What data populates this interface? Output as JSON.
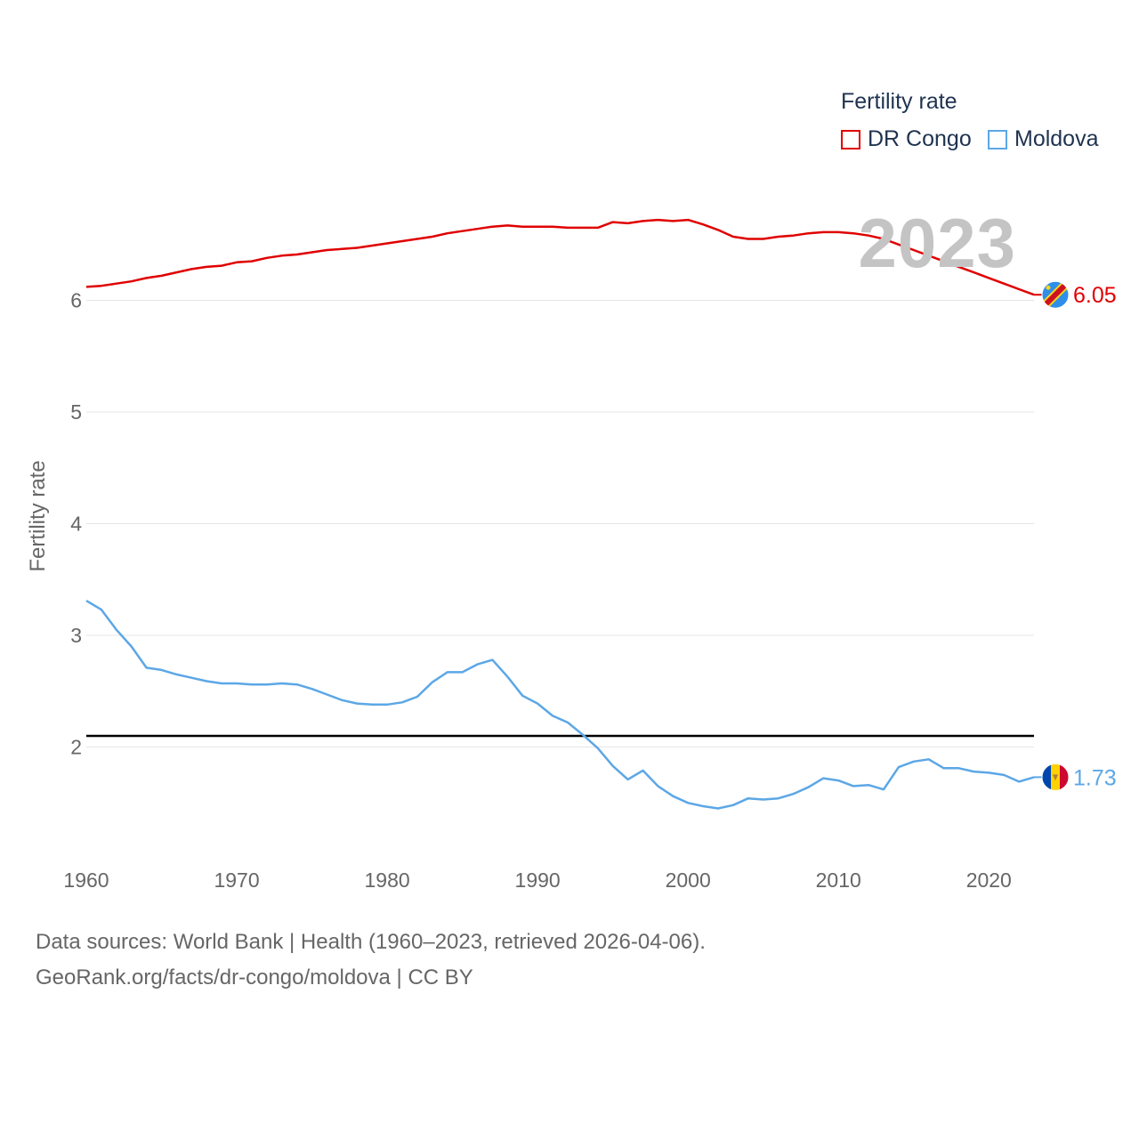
{
  "legend": {
    "title": "Fertility rate",
    "items": [
      {
        "label": "DR Congo",
        "color": "#e00000"
      },
      {
        "label": "Moldova",
        "color": "#5ca7e6"
      }
    ]
  },
  "year_watermark": "2023",
  "footer": {
    "line1": "Data sources: World Bank | Health (1960–2023, retrieved 2026-04-06).",
    "line2": "GeoRank.org/facts/dr-congo/moldova | CC BY"
  },
  "chart_data": {
    "type": "line",
    "title": "Fertility rate",
    "xlabel": "",
    "ylabel": "Fertility rate",
    "xlim": [
      1960,
      2023
    ],
    "ylim": [
      1.0,
      7.0
    ],
    "x_ticks": [
      1960,
      1970,
      1980,
      1990,
      2000,
      2010,
      2020
    ],
    "y_ticks": [
      2,
      3,
      4,
      5,
      6
    ],
    "reference_line": {
      "value": 2.1,
      "color": "#000000"
    },
    "x": [
      1960,
      1961,
      1962,
      1963,
      1964,
      1965,
      1966,
      1967,
      1968,
      1969,
      1970,
      1971,
      1972,
      1973,
      1974,
      1975,
      1976,
      1977,
      1978,
      1979,
      1980,
      1981,
      1982,
      1983,
      1984,
      1985,
      1986,
      1987,
      1988,
      1989,
      1990,
      1991,
      1992,
      1993,
      1994,
      1995,
      1996,
      1997,
      1998,
      1999,
      2000,
      2001,
      2002,
      2003,
      2004,
      2005,
      2006,
      2007,
      2008,
      2009,
      2010,
      2011,
      2012,
      2013,
      2014,
      2015,
      2016,
      2017,
      2018,
      2019,
      2020,
      2021,
      2022,
      2023
    ],
    "series": [
      {
        "name": "DR Congo",
        "color": "#e00000",
        "end_label": "6.05",
        "values": [
          6.12,
          6.13,
          6.15,
          6.17,
          6.2,
          6.22,
          6.25,
          6.28,
          6.3,
          6.31,
          6.34,
          6.35,
          6.38,
          6.4,
          6.41,
          6.43,
          6.45,
          6.46,
          6.47,
          6.49,
          6.51,
          6.53,
          6.55,
          6.57,
          6.6,
          6.62,
          6.64,
          6.66,
          6.67,
          6.66,
          6.66,
          6.66,
          6.65,
          6.65,
          6.65,
          6.7,
          6.69,
          6.71,
          6.72,
          6.71,
          6.72,
          6.68,
          6.63,
          6.57,
          6.55,
          6.55,
          6.57,
          6.58,
          6.6,
          6.61,
          6.61,
          6.6,
          6.58,
          6.55,
          6.5,
          6.45,
          6.4,
          6.35,
          6.3,
          6.25,
          6.2,
          6.15,
          6.1,
          6.05
        ]
      },
      {
        "name": "Moldova",
        "color": "#5ca7e6",
        "end_label": "1.73",
        "values": [
          3.31,
          3.23,
          3.05,
          2.9,
          2.71,
          2.69,
          2.65,
          2.62,
          2.59,
          2.57,
          2.57,
          2.56,
          2.56,
          2.57,
          2.56,
          2.52,
          2.47,
          2.42,
          2.39,
          2.38,
          2.38,
          2.4,
          2.45,
          2.58,
          2.67,
          2.67,
          2.74,
          2.78,
          2.63,
          2.46,
          2.39,
          2.28,
          2.22,
          2.11,
          1.99,
          1.83,
          1.71,
          1.79,
          1.65,
          1.56,
          1.5,
          1.47,
          1.45,
          1.48,
          1.54,
          1.53,
          1.54,
          1.58,
          1.64,
          1.72,
          1.7,
          1.65,
          1.66,
          1.62,
          1.82,
          1.87,
          1.89,
          1.81,
          1.81,
          1.78,
          1.77,
          1.75,
          1.69,
          1.73
        ]
      }
    ]
  }
}
